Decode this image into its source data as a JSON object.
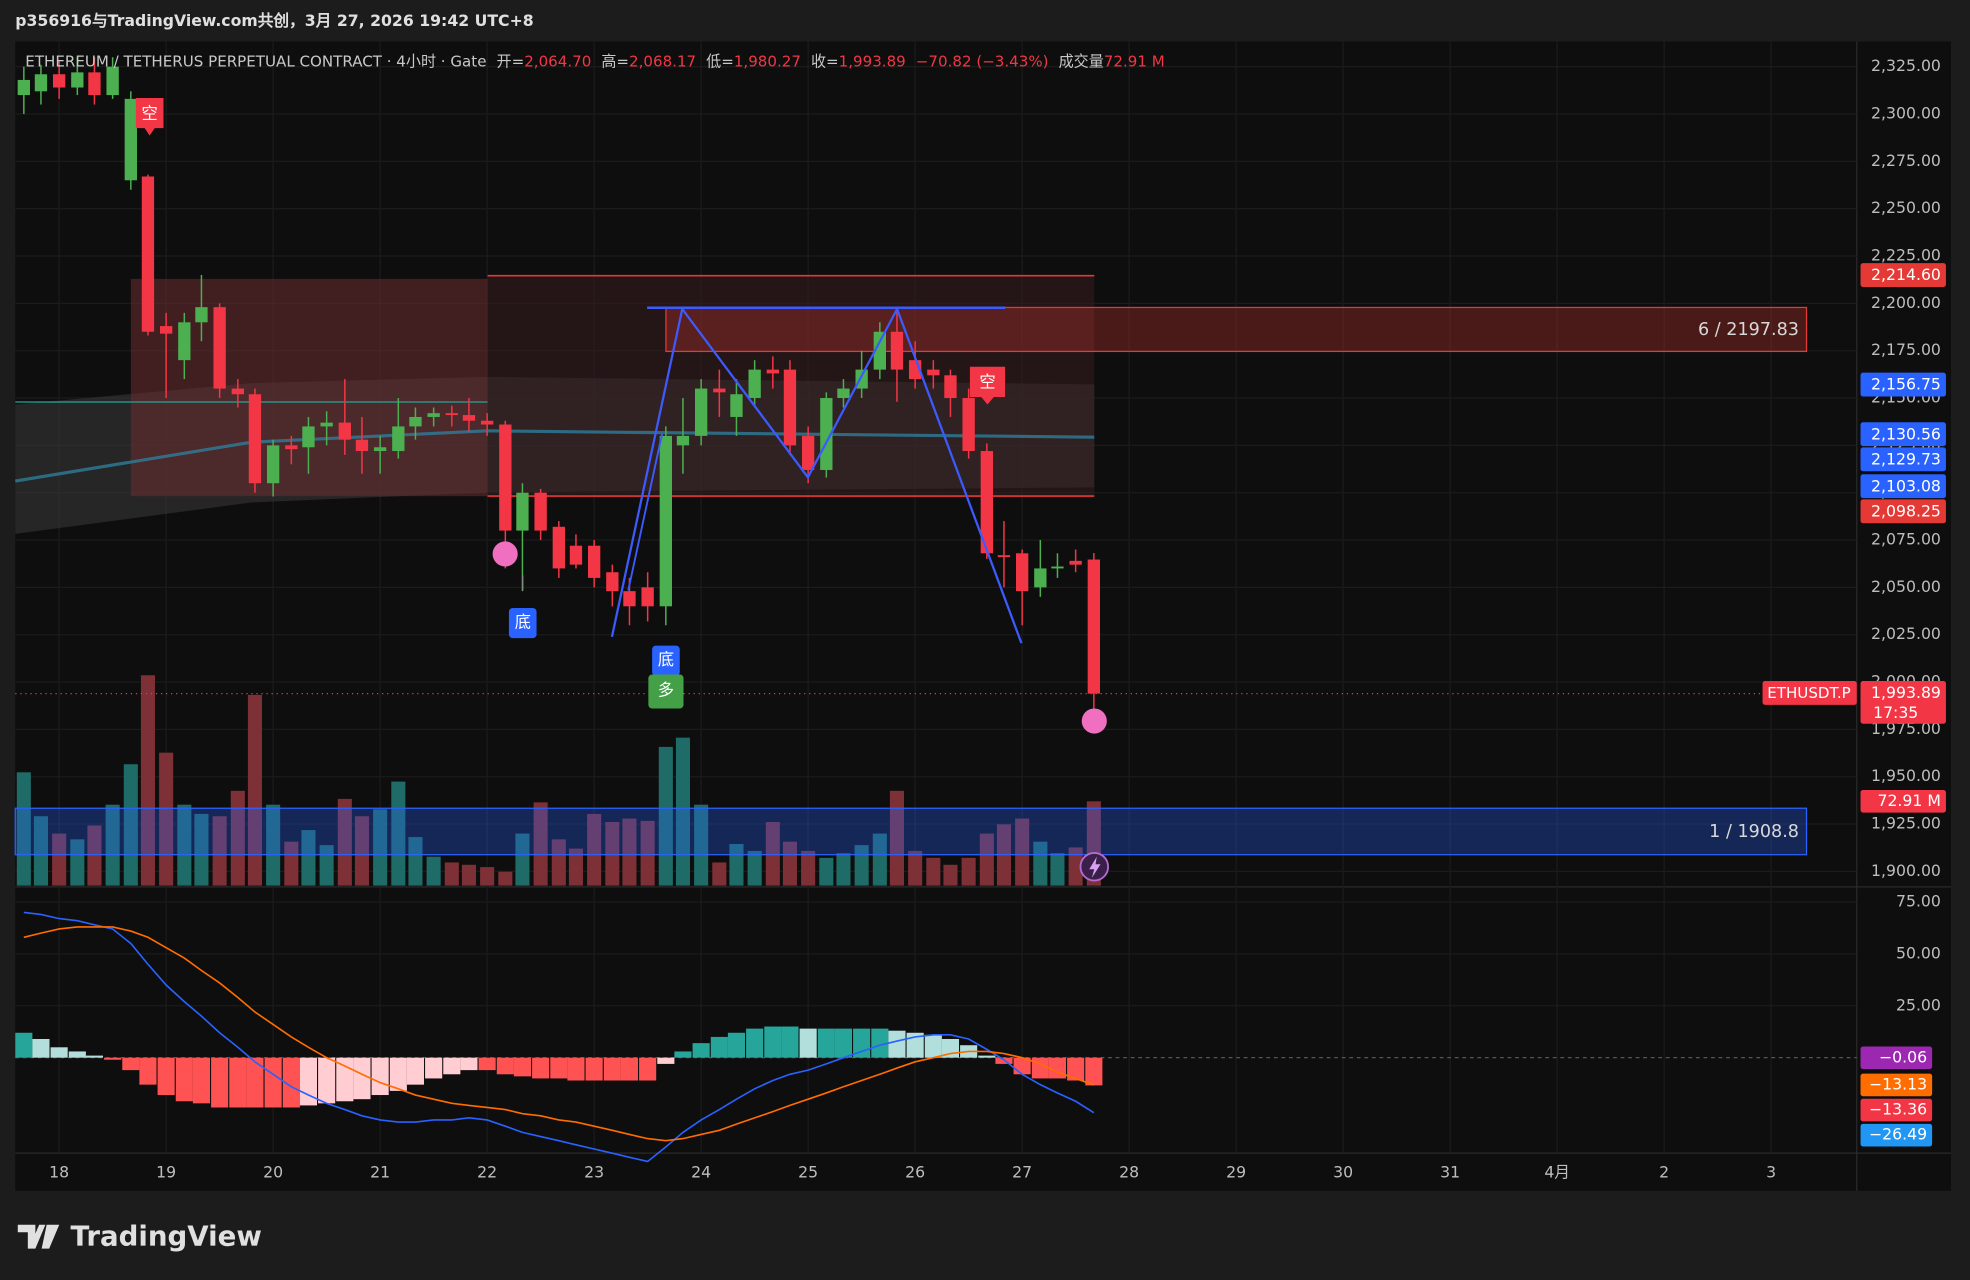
{
  "header": {
    "text": "p356916与TradingView.com共创，3月 27, 2026 19:42 UTC+8"
  },
  "footer": {
    "logo": "TradingView"
  },
  "chart_data": [
    {
      "type": "candlestick",
      "legend": [
        "ETHEREUM / TETHERUS PERPETUAL CONTRACT · 4小时 · Gate",
        "开=",
        "2,064.70",
        "高=",
        "2,068.17",
        "低=",
        "1,980.27",
        "收=",
        "1,993.89",
        "−70.82 (−3.43%)",
        "成交量",
        "72.91 M"
      ],
      "x": [
        17.67,
        17.83,
        18,
        18.17,
        18.33,
        18.5,
        18.67,
        18.83,
        19,
        19.17,
        19.33,
        19.5,
        19.67,
        19.83,
        20,
        20.17,
        20.33,
        20.5,
        20.67,
        20.83,
        21,
        21.17,
        21.33,
        21.5,
        21.67,
        21.83,
        22,
        22.17,
        22.33,
        22.5,
        22.67,
        22.83,
        23,
        23.17,
        23.33,
        23.5,
        23.67,
        23.83,
        24,
        24.17,
        24.33,
        24.5,
        24.67,
        24.83,
        25,
        25.17,
        25.33,
        25.5,
        25.67,
        25.83,
        26,
        26.17,
        26.33,
        26.5,
        26.67,
        26.83,
        27,
        27.17,
        27.33,
        27.5,
        27.67
      ],
      "open": [
        2310,
        2312,
        2321,
        2314,
        2322,
        2310,
        2265,
        2267,
        2188,
        2170,
        2190,
        2198,
        2155,
        2152,
        2105,
        2125,
        2124,
        2135,
        2137,
        2128,
        2122,
        2122,
        2135,
        2140,
        2142,
        2141,
        2138,
        2136,
        2080,
        2100,
        2082,
        2072,
        2072,
        2058,
        2048,
        2050,
        2040,
        2125,
        2130,
        2155,
        2140,
        2150,
        2165,
        2165,
        2130,
        2112,
        2150,
        2155,
        2165,
        2185,
        2170,
        2165,
        2162,
        2150,
        2122,
        2067,
        2068,
        2050,
        2060,
        2064,
        2064.7
      ],
      "high": [
        2325,
        2326,
        2328,
        2330,
        2330,
        2330,
        2312,
        2268,
        2195,
        2195,
        2215,
        2200,
        2160,
        2155,
        2128,
        2130,
        2140,
        2143,
        2160,
        2140,
        2130,
        2150,
        2145,
        2145,
        2146,
        2150,
        2142,
        2138,
        2105,
        2102,
        2085,
        2078,
        2075,
        2062,
        2055,
        2058,
        2135,
        2150,
        2160,
        2165,
        2160,
        2170,
        2172,
        2170,
        2135,
        2153,
        2160,
        2175,
        2190,
        2198,
        2180,
        2170,
        2165,
        2155,
        2126,
        2085,
        2070,
        2075,
        2068,
        2070,
        2068.17
      ],
      "low": [
        2300,
        2305,
        2308,
        2310,
        2305,
        2308,
        2260,
        2183,
        2150,
        2160,
        2180,
        2150,
        2145,
        2100,
        2098,
        2115,
        2110,
        2125,
        2120,
        2110,
        2110,
        2118,
        2128,
        2135,
        2135,
        2132,
        2130,
        2060,
        2048,
        2075,
        2055,
        2060,
        2050,
        2040,
        2030,
        2032,
        2030,
        2110,
        2125,
        2140,
        2130,
        2145,
        2155,
        2120,
        2105,
        2108,
        2145,
        2150,
        2160,
        2148,
        2155,
        2155,
        2140,
        2118,
        2065,
        2050,
        2030,
        2045,
        2055,
        2058,
        1980.27
      ],
      "close": [
        2318,
        2321,
        2314,
        2322,
        2310,
        2325,
        2308,
        2185,
        2184,
        2190,
        2198,
        2155,
        2152,
        2105,
        2125,
        2123,
        2135,
        2137,
        2128,
        2122,
        2124,
        2135,
        2140,
        2142,
        2141,
        2138,
        2136,
        2080,
        2100,
        2080,
        2060,
        2062,
        2055,
        2048,
        2040,
        2040,
        2130,
        2130,
        2155,
        2153,
        2152,
        2165,
        2163,
        2125,
        2112,
        2150,
        2155,
        2165,
        2185,
        2165,
        2160,
        2162,
        2150,
        2122,
        2068,
        2066,
        2048,
        2060,
        2061,
        2062,
        1993.89
      ],
      "volume": [
        98,
        60,
        45,
        40,
        52,
        70,
        105,
        182,
        115,
        70,
        62,
        60,
        82,
        165,
        70,
        38,
        48,
        35,
        75,
        60,
        66,
        90,
        42,
        25,
        20,
        18,
        16,
        12,
        45,
        72,
        40,
        32,
        62,
        55,
        58,
        56,
        120,
        128,
        70,
        20,
        36,
        30,
        55,
        38,
        30,
        24,
        28,
        35,
        45,
        82,
        30,
        24,
        18,
        24,
        45,
        53,
        58,
        38,
        28,
        33,
        72.91
      ],
      "volume_label": "72.91 M",
      "up_color": "#4caf50",
      "down_color": "#f23645",
      "volume_up_color": "#1f6b68",
      "volume_down_color": "#7d3036",
      "xlim": [
        17.59,
        34.8
      ],
      "xticks": [
        18,
        19,
        20,
        21,
        22,
        23,
        24,
        25,
        26,
        27,
        28,
        29,
        30,
        31,
        {
          "value": 32,
          "label": "4月"
        },
        {
          "value": 33,
          "label": "2"
        },
        {
          "value": 34,
          "label": "3"
        }
      ],
      "ylim": [
        1892.5,
        2337
      ],
      "yticks": [
        {
          "value": 1900,
          "label": "1,900.00"
        },
        {
          "value": 1925,
          "label": "1,925.00"
        },
        {
          "value": 1950,
          "label": "1,950.00"
        },
        {
          "value": 1975,
          "label": "1,975.00"
        },
        {
          "value": 2000,
          "label": "2,000.00"
        },
        {
          "value": 2025,
          "label": "2,025.00"
        },
        {
          "value": 2050,
          "label": "2,050.00"
        },
        {
          "value": 2075,
          "label": "2,075.00"
        },
        {
          "value": 2100,
          "label": "2,100.00"
        },
        {
          "value": 2125,
          "label": "2,125.00"
        },
        {
          "value": 2150,
          "label": "2,150.00"
        },
        {
          "value": 2175,
          "label": "2,175.00"
        },
        {
          "value": 2200,
          "label": "2,200.00"
        },
        {
          "value": 2225,
          "label": "2,225.00"
        },
        {
          "value": 2250,
          "label": "2,250.00"
        },
        {
          "value": 2275,
          "label": "2,275.00"
        },
        {
          "value": 2300,
          "label": "2,300.00"
        },
        {
          "value": 2325,
          "label": "2,325.00"
        }
      ],
      "grid": true,
      "price_labels": [
        {
          "value": 2214.6,
          "label": "2,214.60",
          "color": "#e53935"
        },
        {
          "value": 2156.75,
          "label": "2,156.75",
          "color": "#2962ff"
        },
        {
          "value": 2130.56,
          "label": "2,130.56",
          "color": "#2962ff"
        },
        {
          "value": 2129.73,
          "label": "2,129.73",
          "color": "#2962ff"
        },
        {
          "value": 2103.08,
          "label": "2,103.08",
          "color": "#2962ff"
        },
        {
          "value": 2098.25,
          "label": "2,098.25",
          "color": "#e53935"
        },
        {
          "value": 1993.89,
          "label": "1,993.89",
          "color": "#f23645",
          "sub": "17:35",
          "tag": "ETHUSDT.P"
        }
      ],
      "zones": [
        {
          "value": 2197.83,
          "label": "6 / 2197.83",
          "color": "#e53935"
        },
        {
          "value": 1908.8,
          "label": "1 / 1908.8",
          "color": "#2962ff"
        }
      ],
      "signals": [
        "空",
        "底",
        "底",
        "多",
        "空"
      ]
    },
    {
      "type": "macd",
      "macd": [
        70,
        69,
        67,
        66,
        64,
        62,
        55,
        45,
        35,
        27,
        20,
        12,
        5,
        -2,
        -8,
        -14,
        -18,
        -22,
        -25,
        -28,
        -30,
        -31,
        -31,
        -30,
        -30,
        -29,
        -30,
        -33,
        -36,
        -38,
        -40,
        -42,
        -44,
        -46,
        -48,
        -50,
        -43,
        -36,
        -30,
        -25,
        -20,
        -15,
        -11,
        -8,
        -6,
        -3,
        0,
        3,
        6,
        8,
        10,
        11,
        11,
        9,
        4,
        -1,
        -8,
        -13,
        -17,
        -21,
        -26.49
      ],
      "signal": [
        58,
        60,
        62,
        63,
        63,
        63,
        61,
        58,
        53,
        48,
        42,
        36,
        29,
        22,
        16,
        10,
        5,
        0,
        -4,
        -8,
        -12,
        -15,
        -18,
        -20,
        -22,
        -23,
        -24,
        -25,
        -27,
        -28,
        -30,
        -31,
        -33,
        -35,
        -37,
        -39,
        -40,
        -39,
        -37,
        -35,
        -32,
        -29,
        -26,
        -23,
        -20,
        -17,
        -14,
        -11,
        -8,
        -5,
        -2,
        0,
        2,
        3,
        3,
        2,
        0,
        -3,
        -7,
        -10,
        -13.13
      ],
      "histogram": [
        12,
        9,
        5,
        3,
        1,
        -1,
        -6,
        -13,
        -18,
        -21,
        -22,
        -24,
        -24,
        -24,
        -24,
        -24,
        -23,
        -22,
        -21,
        -20,
        -18,
        -16,
        -13,
        -10,
        -8,
        -6,
        -6,
        -8,
        -9,
        -10,
        -10,
        -11,
        -11,
        -11,
        -11,
        -11,
        -3,
        3,
        7,
        10,
        12,
        14,
        15,
        15,
        14,
        14,
        14,
        14,
        14,
        13,
        12,
        11,
        9,
        6,
        1,
        -3,
        -8,
        -10,
        -10,
        -11,
        -13.36
      ],
      "macd_color": "#2962ff",
      "signal_color": "#ff6d00",
      "hist_colors": {
        "pos_up": "#26a69a",
        "pos_down": "#b2dfdb",
        "neg_down": "#ff5252",
        "neg_up": "#ffcdd2"
      },
      "ylim": [
        -47.2,
        81.1
      ],
      "yticks": [
        {
          "value": 25,
          "label": "25.00"
        },
        {
          "value": 50,
          "label": "50.00"
        },
        {
          "value": 75,
          "label": "75.00"
        }
      ],
      "labels": [
        {
          "value": -0.06,
          "label": "−0.06",
          "color": "#9c27b0"
        },
        {
          "value": -13.13,
          "label": "−13.13",
          "color": "#ff6d00"
        },
        {
          "value": -13.36,
          "label": "−13.36",
          "color": "#f23645"
        },
        {
          "value": -26.49,
          "label": "−26.49",
          "color": "#2196f3"
        }
      ]
    }
  ]
}
